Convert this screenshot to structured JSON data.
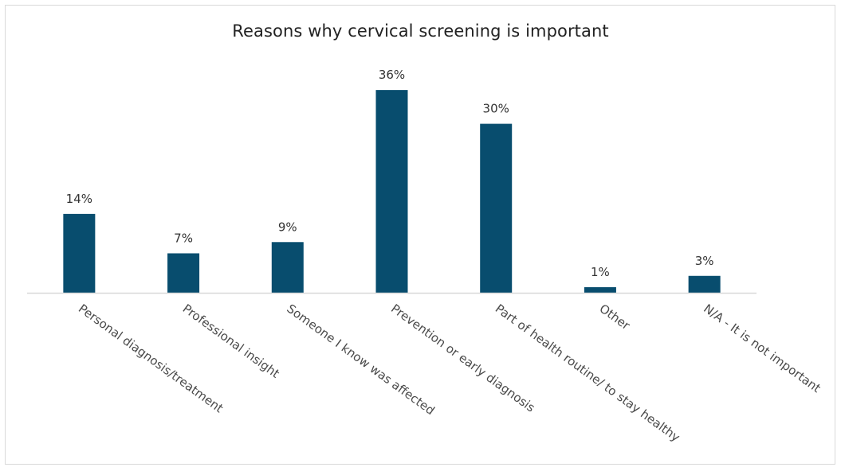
{
  "chart_data": {
    "type": "bar",
    "title": "Reasons why cervical screening is important",
    "xlabel": "",
    "ylabel": "",
    "categories": [
      "Personal diagnosis/treatment",
      "Professional insight",
      "Someone I know was affected",
      "Prevention or early diagnosis",
      "Part of health routine/ to stay healthy",
      "Other",
      "N/A - It is not important"
    ],
    "values": [
      14,
      7,
      9,
      36,
      30,
      1,
      3
    ],
    "data_labels": [
      "14%",
      "7%",
      "9%",
      "36%",
      "30%",
      "1%",
      "3%"
    ],
    "value_unit": "%",
    "ylim": [
      0,
      40
    ],
    "grid": false,
    "legend": "none",
    "colors": {
      "bar": "#084d6e",
      "axis": "#d9d9d9"
    }
  }
}
